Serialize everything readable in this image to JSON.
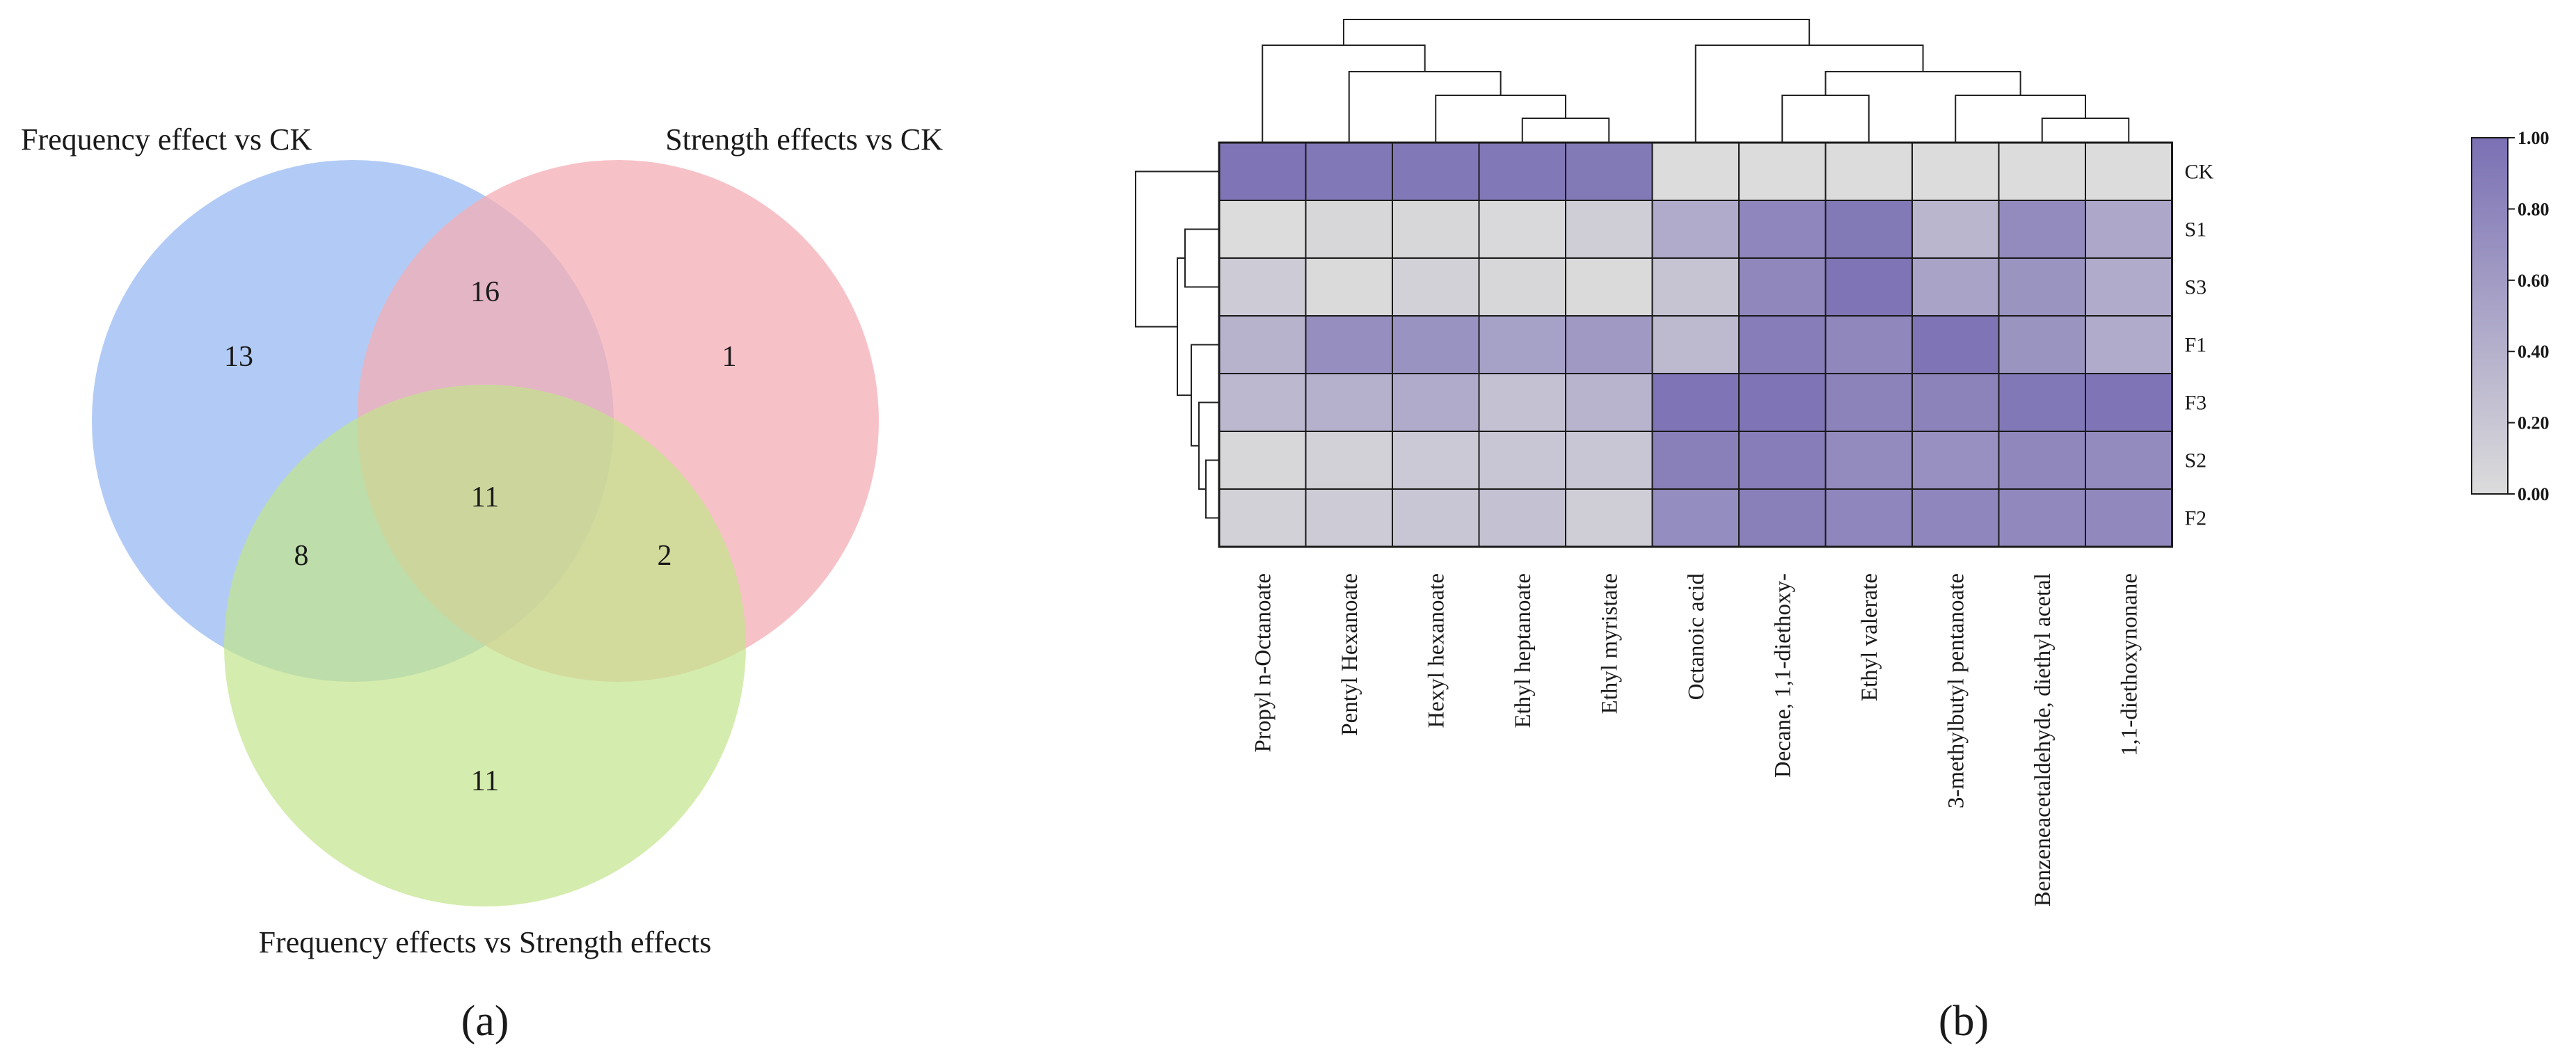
{
  "panels": {
    "a": "(a)",
    "b": "(b)"
  },
  "colors": {
    "venn_a": "#a4c2f4",
    "venn_b": "#f4aeb4",
    "venn_c": "#c2e48a",
    "heat_low": "#dcdcdc",
    "heat_high": "#7a70b4",
    "tree": "#222222"
  },
  "chart_data": [
    {
      "type": "venn",
      "sets": [
        {
          "name": "Frequency effect vs CK",
          "color": "#a4c2f4"
        },
        {
          "name": "Strength effects vs CK",
          "color": "#f4aeb4"
        },
        {
          "name": "Frequency effects vs Strength effects",
          "color": "#c2e48a"
        }
      ],
      "regions": [
        {
          "region": "a_only",
          "sets": [
            "Frequency effect vs CK"
          ],
          "value": 13
        },
        {
          "region": "b_only",
          "sets": [
            "Strength effects vs CK"
          ],
          "value": 1
        },
        {
          "region": "c_only",
          "sets": [
            "Frequency effects vs Strength effects"
          ],
          "value": 11
        },
        {
          "region": "ab",
          "sets": [
            "Frequency effect vs CK",
            "Strength effects vs CK"
          ],
          "value": 16
        },
        {
          "region": "ac",
          "sets": [
            "Frequency effect vs CK",
            "Frequency effects vs Strength effects"
          ],
          "value": 8
        },
        {
          "region": "bc",
          "sets": [
            "Strength effects vs CK",
            "Frequency effects vs Strength effects"
          ],
          "value": 2
        },
        {
          "region": "abc",
          "sets": [
            "Frequency effect vs CK",
            "Strength effects vs CK",
            "Frequency effects vs Strength effects"
          ],
          "value": 11
        }
      ]
    },
    {
      "type": "heatmap",
      "rows": [
        "CK",
        "S1",
        "S3",
        "F1",
        "F3",
        "S2",
        "F2"
      ],
      "columns": [
        "Propyl n-Octanoate",
        "Pentyl Hexanoate",
        "Hexyl hexanoate",
        "Ethyl heptanoate",
        "Ethyl myristate",
        "Octanoic acid",
        "Decane, 1,1-diethoxy-",
        "Ethyl valerate",
        "3-methylbutyl pentanoate",
        "Benzeneacetaldehyde, diethyl acetal",
        "1,1-diethoxynonane"
      ],
      "values": [
        [
          0.95,
          0.93,
          0.93,
          0.93,
          0.92,
          0.0,
          0.0,
          0.0,
          0.0,
          0.0,
          0.0
        ],
        [
          0.0,
          0.05,
          0.05,
          0.03,
          0.13,
          0.45,
          0.8,
          0.92,
          0.35,
          0.75,
          0.48
        ],
        [
          0.15,
          0.02,
          0.1,
          0.05,
          0.02,
          0.22,
          0.78,
          0.95,
          0.53,
          0.67,
          0.45
        ],
        [
          0.38,
          0.72,
          0.68,
          0.55,
          0.62,
          0.32,
          0.88,
          0.78,
          0.95,
          0.67,
          0.45
        ],
        [
          0.33,
          0.4,
          0.45,
          0.25,
          0.37,
          0.95,
          0.95,
          0.82,
          0.82,
          0.93,
          0.95
        ],
        [
          0.05,
          0.1,
          0.18,
          0.2,
          0.2,
          0.85,
          0.87,
          0.75,
          0.7,
          0.78,
          0.75
        ],
        [
          0.1,
          0.15,
          0.2,
          0.25,
          0.13,
          0.73,
          0.85,
          0.8,
          0.8,
          0.77,
          0.77
        ]
      ],
      "colorbar": {
        "min": 0.0,
        "max": 1.0,
        "ticks": [
          "0.00",
          "0.20",
          "0.40",
          "0.60",
          "0.80",
          "1.00"
        ]
      },
      "row_dendrogram": {
        "merges": [
          [
            "S1",
            "S3"
          ],
          [
            "S2",
            "F2"
          ],
          [
            "F3",
            "S2+F2"
          ],
          [
            "F1",
            "F3+S2+F2"
          ],
          [
            "S1+S3",
            "F1+F3+S2+F2"
          ],
          [
            "CK",
            "all samples"
          ]
        ]
      },
      "column_dendrogram": {
        "merges": [
          [
            "Ethyl heptanoate",
            "Ethyl myristate"
          ],
          [
            "Hexyl hexanoate",
            "Ethyl heptanoate+Ethyl myristate"
          ],
          [
            "Pentyl Hexanoate",
            "Hexyl hexanoate+Ethyl heptanoate+Ethyl myristate"
          ],
          [
            "Propyl n-Octanoate",
            "Pentyl Hexanoate+..."
          ],
          [
            "Decane, 1,1-diethoxy-",
            "Ethyl valerate"
          ],
          [
            "Benzeneacetaldehyde, diethyl acetal",
            "1,1-diethoxynonane"
          ],
          [
            "3-methylbutyl pentanoate",
            "Benzeneacetaldehyde+1,1-diethoxynonane"
          ],
          [
            "Decane+Ethyl valerate",
            "3-methylbutyl pentanoate+..."
          ],
          [
            "Octanoic acid",
            "Decane+Ethyl valerate+..."
          ],
          [
            "esters cluster",
            "acid/acetal cluster"
          ]
        ]
      }
    }
  ]
}
